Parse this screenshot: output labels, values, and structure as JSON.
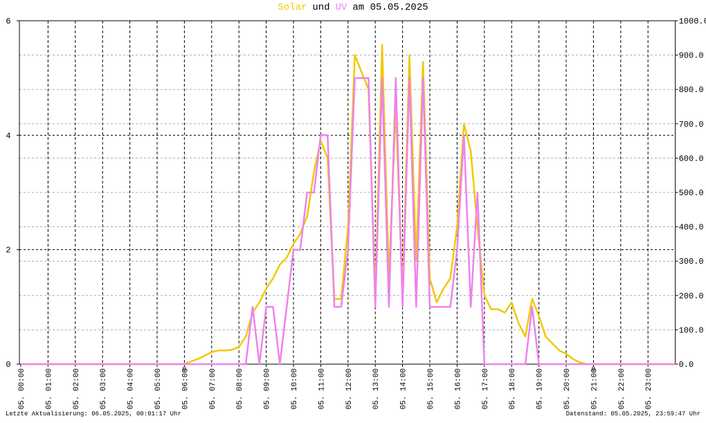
{
  "chart_data": {
    "type": "line",
    "title_joiner": "und",
    "title_date": "am 05.05.2025",
    "footer_left": "Letzte Aktualisierung: 06.05.2025, 00:01:17 Uhr",
    "footer_right": "Datenstand: 05.05.2025, 23:59:47 Uhr",
    "xlim": [
      0,
      24
    ],
    "xticks": [
      {
        "value": 0,
        "label": "05. 00:00"
      },
      {
        "value": 1,
        "label": "05. 01:00"
      },
      {
        "value": 2,
        "label": "05. 02:00"
      },
      {
        "value": 3,
        "label": "05. 03:00"
      },
      {
        "value": 4,
        "label": "05. 04:00"
      },
      {
        "value": 5,
        "label": "05. 05:00"
      },
      {
        "value": 6,
        "label": "05. 06:00"
      },
      {
        "value": 7,
        "label": "05. 07:00"
      },
      {
        "value": 8,
        "label": "05. 08:00"
      },
      {
        "value": 9,
        "label": "05. 09:00"
      },
      {
        "value": 10,
        "label": "05. 10:00"
      },
      {
        "value": 11,
        "label": "05. 11:00"
      },
      {
        "value": 12,
        "label": "05. 12:00"
      },
      {
        "value": 13,
        "label": "05. 13:00"
      },
      {
        "value": 14,
        "label": "05. 14:00"
      },
      {
        "value": 15,
        "label": "05. 15:00"
      },
      {
        "value": 16,
        "label": "05. 16:00"
      },
      {
        "value": 17,
        "label": "05. 17:00"
      },
      {
        "value": 18,
        "label": "05. 18:00"
      },
      {
        "value": 19,
        "label": "05. 19:00"
      },
      {
        "value": 20,
        "label": "05. 20:00"
      },
      {
        "value": 21,
        "label": "05. 21:00"
      },
      {
        "value": 22,
        "label": "05. 22:00"
      },
      {
        "value": 23,
        "label": "05. 23:00"
      }
    ],
    "ylim": [
      0,
      6
    ],
    "yticks": [
      0,
      2,
      4,
      6
    ],
    "y2lim": [
      0,
      1000
    ],
    "y2ticks": [
      {
        "value": 0,
        "label": "0.0"
      },
      {
        "value": 100,
        "label": "100.0"
      },
      {
        "value": 200,
        "label": "200.0"
      },
      {
        "value": 300,
        "label": "300.0"
      },
      {
        "value": 400,
        "label": "400.0"
      },
      {
        "value": 500,
        "label": "500.0"
      },
      {
        "value": 600,
        "label": "600.0"
      },
      {
        "value": 700,
        "label": "700.0"
      },
      {
        "value": 800,
        "label": "800.0"
      },
      {
        "value": 900,
        "label": "900.0"
      },
      {
        "value": 1000,
        "label": "1000.0"
      }
    ],
    "grid": true,
    "markers": [
      {
        "x": 6,
        "label": "0"
      },
      {
        "x": 21,
        "label": "0"
      }
    ],
    "marker_color": "#e0602a",
    "x": [
      0,
      6,
      6.25,
      6.5,
      6.75,
      7,
      7.25,
      7.5,
      7.75,
      8,
      8.25,
      8.5,
      8.75,
      9,
      9.25,
      9.5,
      9.75,
      10,
      10.25,
      10.5,
      10.75,
      11,
      11.25,
      11.5,
      11.75,
      12,
      12.25,
      12.5,
      12.75,
      13,
      13.25,
      13.5,
      13.75,
      14,
      14.25,
      14.5,
      14.75,
      15,
      15.25,
      15.5,
      15.75,
      16,
      16.25,
      16.5,
      16.75,
      17,
      17.25,
      17.5,
      17.75,
      18,
      18.25,
      18.5,
      18.75,
      19,
      19.25,
      19.5,
      19.75,
      20,
      20.25,
      20.5,
      20.75,
      21,
      24
    ],
    "series": [
      {
        "name": "Solar",
        "color": "#f2c800",
        "axis": "y2",
        "values": [
          0,
          0,
          8,
          15,
          25,
          35,
          40,
          40,
          42,
          50,
          80,
          150,
          180,
          220,
          250,
          290,
          310,
          350,
          380,
          430,
          560,
          650,
          600,
          190,
          190,
          400,
          900,
          850,
          800,
          200,
          930,
          250,
          750,
          200,
          900,
          300,
          880,
          250,
          180,
          220,
          250,
          400,
          700,
          620,
          400,
          200,
          160,
          160,
          150,
          180,
          120,
          80,
          190,
          140,
          80,
          60,
          40,
          30,
          15,
          5,
          0,
          0,
          0
        ]
      },
      {
        "name": "UV",
        "color": "#ee82ee",
        "values": [
          0,
          0,
          0,
          0,
          0,
          0,
          0,
          0,
          0,
          0,
          0,
          1,
          0,
          1,
          1,
          0,
          1,
          2,
          2,
          3,
          3,
          4,
          4,
          1,
          1,
          2,
          5,
          5,
          5,
          1,
          5,
          1,
          5,
          1,
          5,
          1,
          5,
          1,
          1,
          1,
          1,
          2,
          4,
          1,
          3,
          0,
          0,
          0,
          0,
          0,
          0,
          0,
          1,
          0,
          0,
          0,
          0,
          0,
          0,
          0,
          0,
          0,
          0
        ]
      }
    ]
  }
}
